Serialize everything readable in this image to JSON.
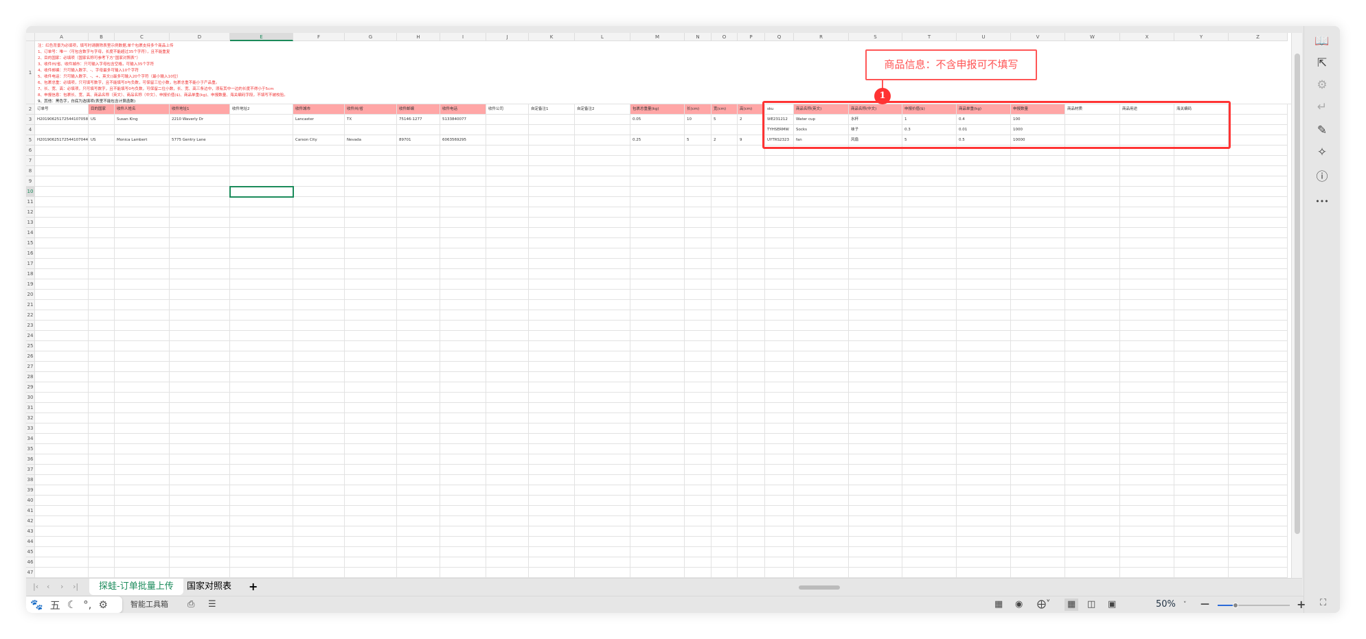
{
  "columns": [
    "A",
    "B",
    "C",
    "D",
    "E",
    "F",
    "G",
    "H",
    "I",
    "J",
    "K",
    "L",
    "M",
    "N",
    "O",
    "P",
    "Q",
    "R",
    "S",
    "T",
    "U",
    "V",
    "W",
    "X",
    "Y",
    "Z"
  ],
  "selected_cell": "E10",
  "notes": [
    "注：红色背景为必填项，填写时请删除表里示例数据,单个包裹支持多个商品上传",
    "1、订单号：唯一（可包含数字与字母，长度不能超过35个字符），且不能重复",
    "2、目的国家：必填项（国家名称可参考下方“国家对照表”）",
    "3、收件州/省、收件城市：只可输入字母包含空格，可输入35个字符",
    "4、收件邮编：只可输入数字、-、字母最多可输入10个字符",
    "5、收件电话：只可输入数字、-、+、英文()最多可输入20个字符（最小输入10位）",
    "6、包裹总重：必填项，只可填写数字，且不能填写0与负数，可保留三位小数，包裹总重不能小于产品重。",
    "7、长、宽、高：必填项，只可填写数字，且不能填写0与负数，可保留二位小数，长、宽、高三条边中，须有其中一边的长度不得小于5cm",
    "8、申报信息：包裹长、宽、高、商品名称（英文）、商品名称（中文）、申报价值($)、商品单重(kg)、申报数量、海关编码字段，不填写不被校验。",
    "9、其他：黑色字，白底为选填项(表里不能包含计算函数)"
  ],
  "headers": [
    "订单号",
    "目的国家",
    "收件人姓名",
    "收件地址1",
    "收件地址2",
    "收件城市",
    "收件州/省",
    "收件邮编",
    "收件电话",
    "收件公司",
    "自定备注1",
    "自定备注2",
    "包裹总重量(kg)",
    "长(cm)",
    "宽(cm)",
    "高(cm)",
    "sku",
    "商品名称(英文)",
    "商品名称(中文)",
    "申报价值($)",
    "商品单重(kg)",
    "申报数量",
    "商品材质",
    "商品用途",
    "海关编码",
    ""
  ],
  "required_columns": [
    "B",
    "C",
    "D",
    "F",
    "G",
    "H",
    "I",
    "M",
    "N",
    "O",
    "P",
    "R",
    "S",
    "T",
    "U",
    "V"
  ],
  "required_color": "#ffa6a6",
  "rows": [
    [
      "H20190625172544107058",
      "US",
      "Susan King",
      "2210 Waverly Dr",
      "",
      "Lancaster",
      "TX",
      "75146-1277",
      "5133840077",
      "",
      "",
      "",
      "0.05",
      "10",
      "5",
      "2",
      "WE231212",
      "Water cup",
      "水杯",
      "1",
      "0.4",
      "100",
      "",
      "",
      "",
      ""
    ],
    [
      "",
      "",
      "",
      "",
      "",
      "",
      "",
      "",
      "",
      "",
      "",
      "",
      "",
      "",
      "",
      "",
      "TYHSERMW",
      "Socks",
      "袜子",
      "0.3",
      "0.01",
      "1000",
      "",
      "",
      "",
      ""
    ],
    [
      "H20190625172544107044",
      "US",
      "Monica Lambert",
      "5775 Gentry Lane",
      "",
      "Carson City",
      "Nevada",
      "89701",
      "6063569295",
      "",
      "",
      "",
      "0.25",
      "5",
      "2",
      "9",
      "UYTRS2323",
      "fan",
      "风扇",
      "5",
      "0.5",
      "10000",
      "",
      "",
      "",
      ""
    ]
  ],
  "annotation": {
    "number": "1",
    "text": "商品信息：不含申报可不填写",
    "color": "#ff3333"
  },
  "sheet_tabs": [
    {
      "label": "探蛙-订单批量上传",
      "active": true
    },
    {
      "label": "国家对照表",
      "active": false
    }
  ],
  "add_sheet": "+",
  "statusbar": {
    "toolbox": "智能工具箱",
    "zoom": "50%",
    "zoom_fraction": 0.25
  },
  "ime": {
    "mode": "五"
  },
  "right_toolbar": [
    "book-search-icon",
    "cursor-icon",
    "sliders-icon",
    "wrap-icon",
    "image-edit-icon",
    "tools-icon",
    "help-icon",
    "more-icon"
  ]
}
